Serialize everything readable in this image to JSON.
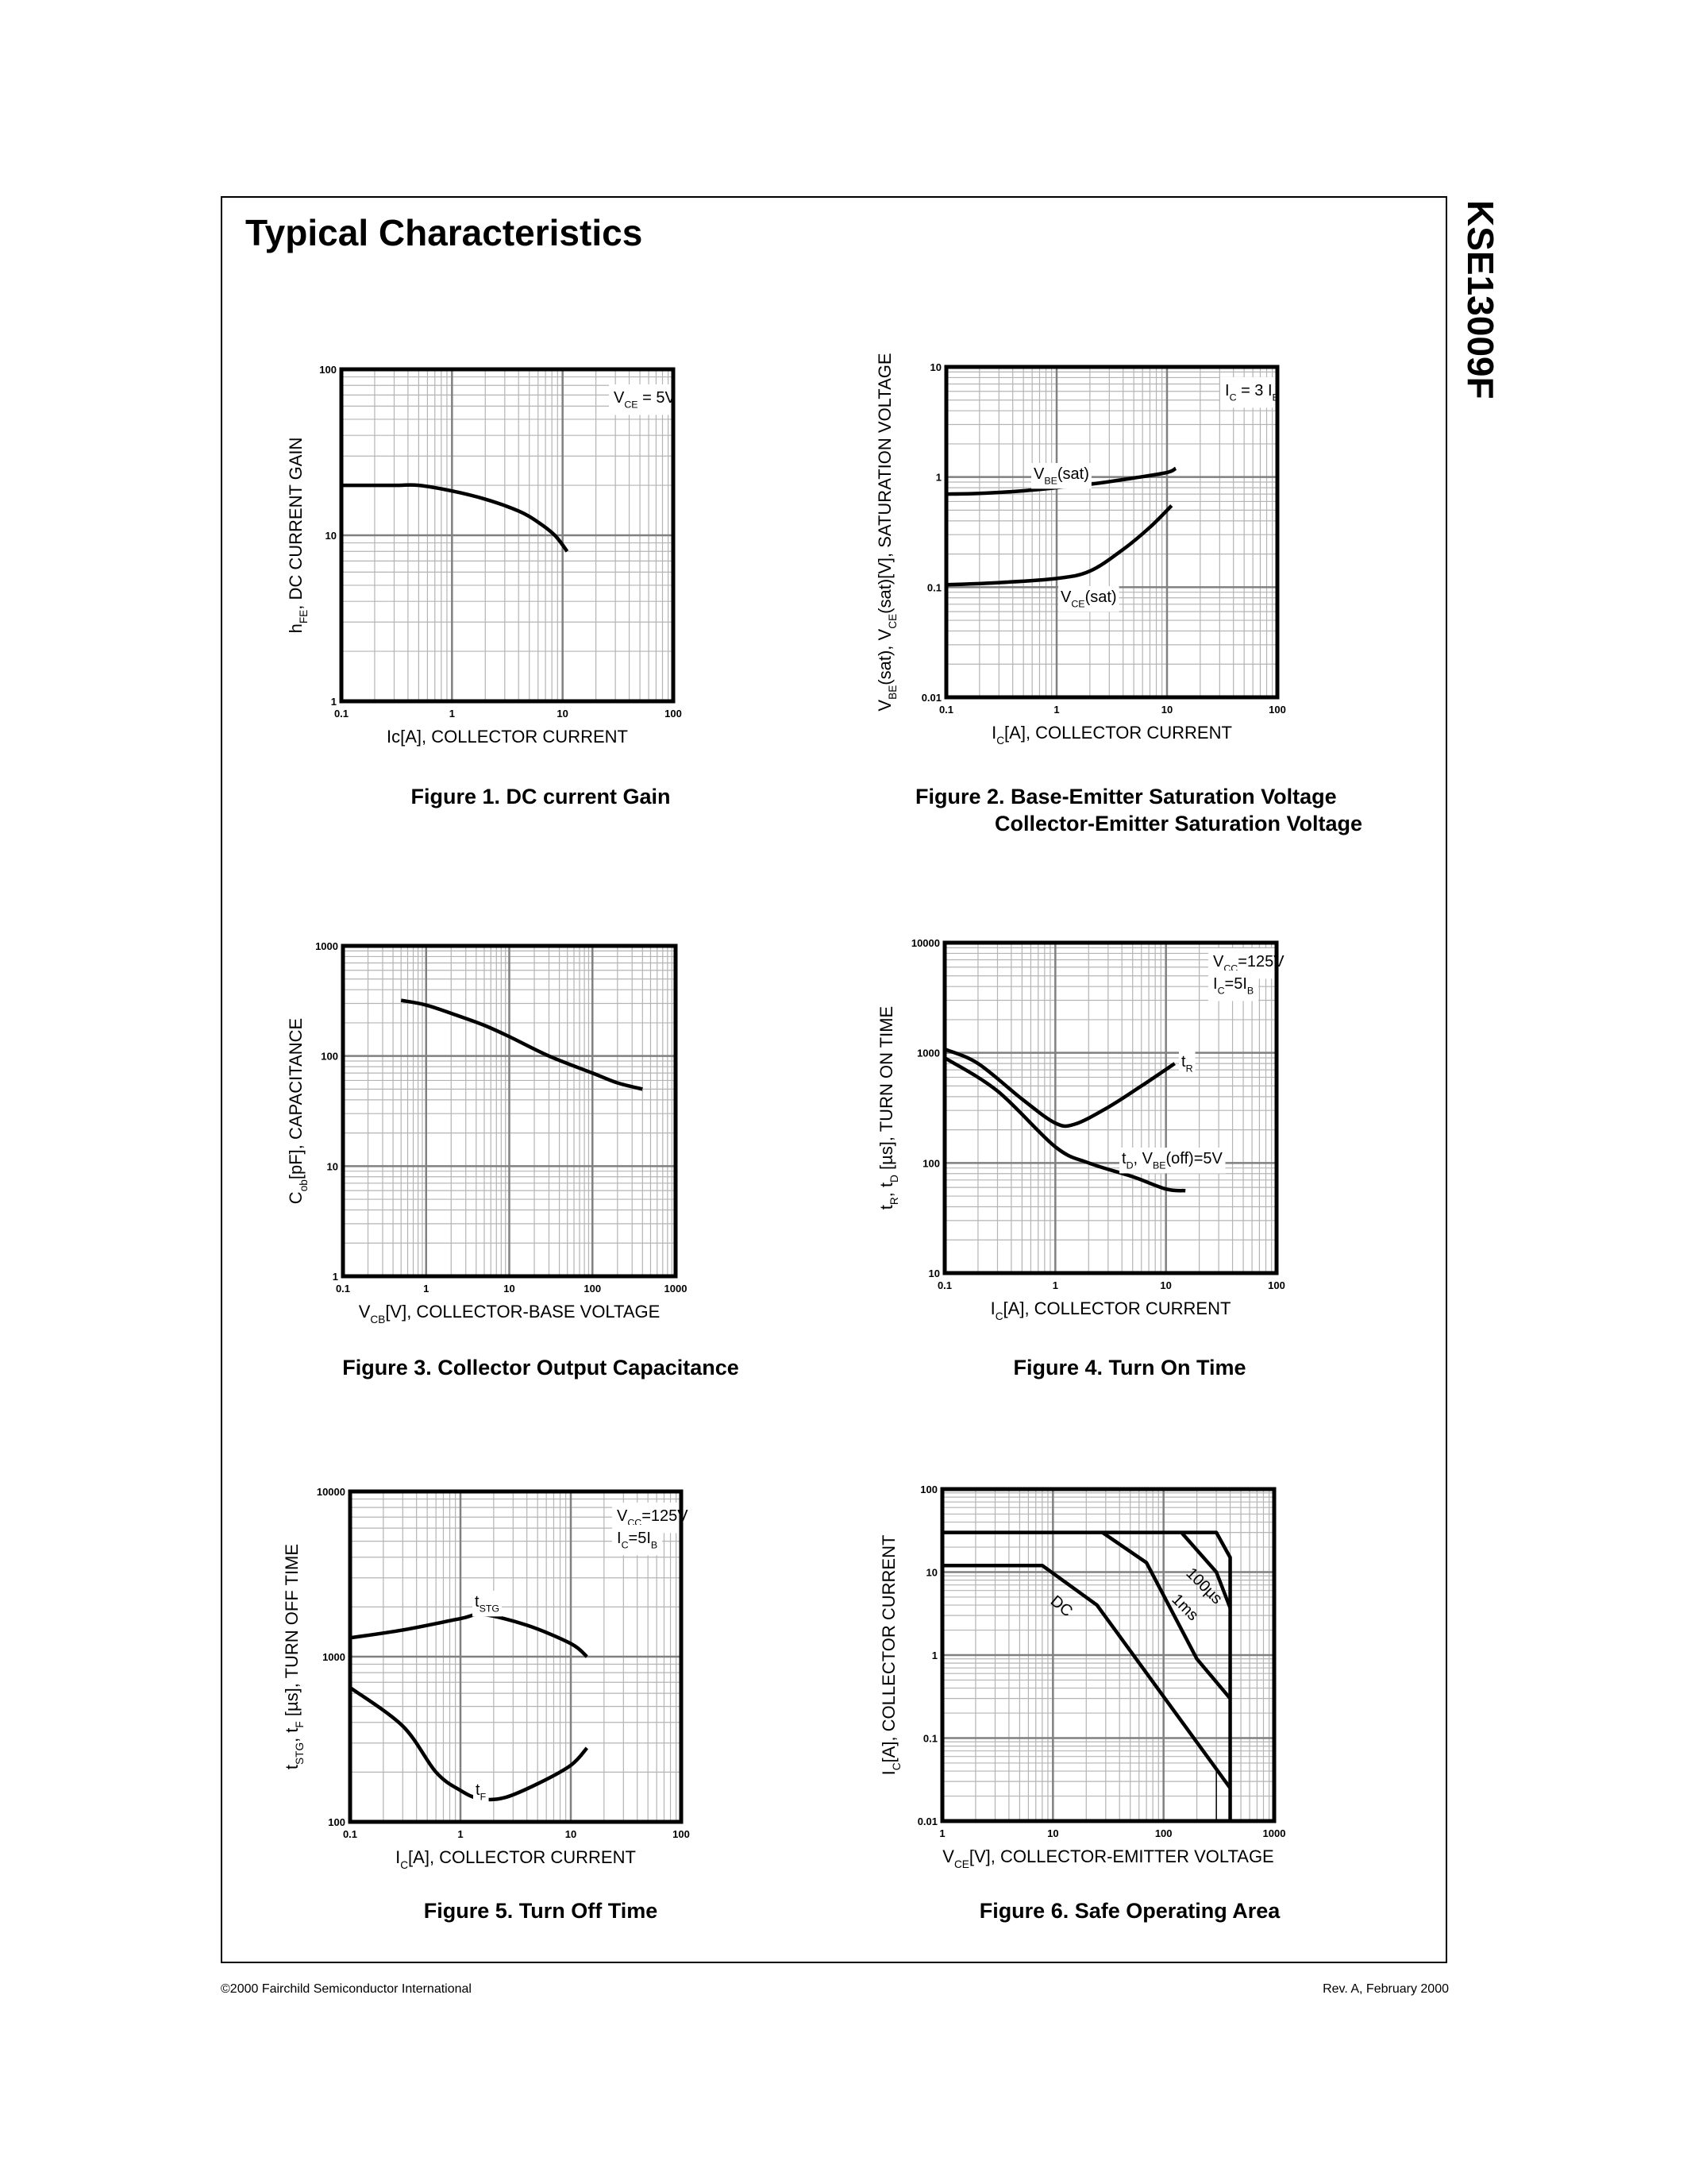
{
  "page": {
    "title": "Typical Characteristics",
    "part_number": "KSE13009F",
    "footer_left": "©2000 Fairchild Semiconductor International",
    "footer_right": "Rev. A, February 2000"
  },
  "captions": {
    "fig1": "Figure 1. DC current Gain",
    "fig2_line1": "Figure 2. Base-Emitter Saturation Voltage",
    "fig2_line2": "Collector-Emitter Saturation Voltage",
    "fig3": "Figure 3. Collector Output Capacitance",
    "fig4": "Figure 4. Turn On Time",
    "fig5": "Figure 5. Turn Off Time",
    "fig6": "Figure 6. Safe Operating Area"
  },
  "chart_data": [
    {
      "type": "line",
      "x_scale": "log",
      "y_scale": "log",
      "grid": true,
      "xlim": [
        0.1,
        100
      ],
      "ylim": [
        1,
        100
      ],
      "xticks": [
        "0.1",
        "1",
        "10",
        "100"
      ],
      "yticks": [
        "1",
        "10",
        "100"
      ],
      "xlabel": [
        {
          "t": "Ic[A], COLLECTOR CURRENT"
        }
      ],
      "ylabel": [
        {
          "t": "h"
        },
        {
          "s": "FE"
        },
        {
          "t": ", DC CURRENT GAIN"
        }
      ],
      "annotations": [
        [
          {
            "t": "V"
          },
          {
            "s": "CE"
          },
          {
            "t": " = 5V"
          }
        ]
      ],
      "series": [
        {
          "x": [
            0.1,
            0.3,
            0.5,
            1,
            2,
            4,
            6,
            8.5,
            11
          ],
          "y": [
            20,
            20,
            20,
            18.5,
            16.5,
            14,
            12,
            10,
            8
          ]
        }
      ]
    },
    {
      "type": "line",
      "x_scale": "log",
      "y_scale": "log",
      "grid": true,
      "xlim": [
        0.1,
        100
      ],
      "ylim": [
        0.01,
        10
      ],
      "xticks": [
        "0.1",
        "1",
        "10",
        "100"
      ],
      "yticks": [
        "0.01",
        "0.1",
        "1",
        "10"
      ],
      "xlabel": [
        {
          "t": "I"
        },
        {
          "s": "C"
        },
        {
          "t": "[A], COLLECTOR CURRENT"
        }
      ],
      "ylabel": [
        {
          "t": "V"
        },
        {
          "s": "BE"
        },
        {
          "t": "(sat), V"
        },
        {
          "s": "CE"
        },
        {
          "t": "(sat)[V], SATURATION VOLTAGE"
        }
      ],
      "annotations": [
        [
          {
            "t": "I"
          },
          {
            "s": "C"
          },
          {
            "t": " = 3 I"
          },
          {
            "s": "B"
          }
        ]
      ],
      "series": [
        {
          "label": [
            {
              "t": "V"
            },
            {
              "s": "BE"
            },
            {
              "t": "(sat)"
            }
          ],
          "x": [
            0.1,
            0.2,
            0.5,
            1,
            2,
            5,
            10,
            12
          ],
          "y": [
            0.7,
            0.71,
            0.75,
            0.8,
            0.86,
            0.98,
            1.1,
            1.2
          ]
        },
        {
          "label": [
            {
              "t": "V"
            },
            {
              "s": "CE"
            },
            {
              "t": "(sat)"
            }
          ],
          "x": [
            0.1,
            0.3,
            1,
            2,
            4,
            7,
            11
          ],
          "y": [
            0.105,
            0.11,
            0.12,
            0.14,
            0.22,
            0.35,
            0.55
          ]
        }
      ]
    },
    {
      "type": "line",
      "x_scale": "log",
      "y_scale": "log",
      "grid": true,
      "xlim": [
        0.1,
        1000
      ],
      "ylim": [
        1,
        1000
      ],
      "xticks": [
        "0.1",
        "1",
        "10",
        "100",
        "1000"
      ],
      "yticks": [
        "1",
        "10",
        "100",
        "1000"
      ],
      "xlabel": [
        {
          "t": "V"
        },
        {
          "s": "CB"
        },
        {
          "t": "[V], COLLECTOR-BASE VOLTAGE"
        }
      ],
      "ylabel": [
        {
          "t": "C"
        },
        {
          "s": "ob"
        },
        {
          "t": "[pF], CAPACITANCE"
        }
      ],
      "annotations": [],
      "series": [
        {
          "x": [
            0.5,
            1,
            2.5,
            5,
            10,
            30,
            100,
            200,
            400
          ],
          "y": [
            320,
            290,
            230,
            190,
            150,
            100,
            70,
            57,
            50
          ]
        }
      ]
    },
    {
      "type": "line",
      "x_scale": "log",
      "y_scale": "log",
      "grid": true,
      "xlim": [
        0.1,
        100
      ],
      "ylim": [
        10,
        10000
      ],
      "xticks": [
        "0.1",
        "1",
        "10",
        "100"
      ],
      "yticks": [
        "10",
        "100",
        "1000",
        "10000"
      ],
      "xlabel": [
        {
          "t": "I"
        },
        {
          "s": "C"
        },
        {
          "t": "[A], COLLECTOR CURRENT"
        }
      ],
      "ylabel": [
        {
          "t": "t"
        },
        {
          "s": "R"
        },
        {
          "t": ", t"
        },
        {
          "s": "D"
        },
        {
          "t": " [µs], TURN ON TIME"
        }
      ],
      "annotations": [
        [
          {
            "t": "V"
          },
          {
            "s": "CC"
          },
          {
            "t": "=125V"
          }
        ],
        [
          {
            "t": "I"
          },
          {
            "s": "C"
          },
          {
            "t": "=5I"
          },
          {
            "s": "B"
          }
        ]
      ],
      "series": [
        {
          "label": [
            {
              "t": "t"
            },
            {
              "s": "R"
            }
          ],
          "x": [
            0.1,
            0.2,
            0.5,
            1,
            1.5,
            3,
            6,
            12
          ],
          "y": [
            1080,
            800,
            380,
            230,
            225,
            320,
            500,
            800
          ]
        },
        {
          "label": [
            {
              "t": "t"
            },
            {
              "s": "D"
            },
            {
              "t": ", V"
            },
            {
              "s": "BE"
            },
            {
              "t": "(off)=5V"
            }
          ],
          "x": [
            0.1,
            0.3,
            1,
            2,
            5,
            10,
            15
          ],
          "y": [
            900,
            450,
            140,
            100,
            75,
            58,
            56
          ]
        }
      ]
    },
    {
      "type": "line",
      "x_scale": "log",
      "y_scale": "log",
      "grid": true,
      "xlim": [
        0.1,
        100
      ],
      "ylim": [
        100,
        10000
      ],
      "xticks": [
        "0.1",
        "1",
        "10",
        "100"
      ],
      "yticks": [
        "100",
        "1000",
        "10000"
      ],
      "xlabel": [
        {
          "t": "I"
        },
        {
          "s": "C"
        },
        {
          "t": "[A], COLLECTOR CURRENT"
        }
      ],
      "ylabel": [
        {
          "t": "t"
        },
        {
          "s": "STG"
        },
        {
          "t": ", t"
        },
        {
          "s": "F"
        },
        {
          "t": " [µs], TURN OFF TIME"
        }
      ],
      "annotations": [
        [
          {
            "t": "V"
          },
          {
            "s": "CC"
          },
          {
            "t": "=125V"
          }
        ],
        [
          {
            "t": "I"
          },
          {
            "s": "C"
          },
          {
            "t": "=5I"
          },
          {
            "s": "B"
          }
        ]
      ],
      "series": [
        {
          "label": [
            {
              "t": "t"
            },
            {
              "s": "STG"
            }
          ],
          "x": [
            0.1,
            0.3,
            1,
            1.6,
            4,
            10,
            14
          ],
          "y": [
            1300,
            1450,
            1700,
            1800,
            1550,
            1200,
            1000
          ]
        },
        {
          "label": [
            {
              "t": "t"
            },
            {
              "s": "F"
            }
          ],
          "x": [
            0.1,
            0.3,
            0.6,
            1,
            1.5,
            2.5,
            5,
            10,
            14
          ],
          "y": [
            650,
            380,
            200,
            155,
            138,
            140,
            170,
            220,
            280
          ]
        }
      ]
    },
    {
      "type": "line",
      "x_scale": "log",
      "y_scale": "log",
      "grid": true,
      "xlim": [
        1,
        1000
      ],
      "ylim": [
        0.01,
        100
      ],
      "xticks": [
        "1",
        "10",
        "100",
        "1000"
      ],
      "yticks": [
        "0.01",
        "0.1",
        "1",
        "10",
        "100"
      ],
      "xlabel": [
        {
          "t": "V"
        },
        {
          "s": "CE"
        },
        {
          "t": "[V], COLLECTOR-EMITTER VOLTAGE"
        }
      ],
      "ylabel": [
        {
          "t": "I"
        },
        {
          "s": "C"
        },
        {
          "t": "[A], COLLECTOR CURRENT"
        }
      ],
      "annotations": [],
      "series": [
        {
          "label": [
            {
              "t": "DC"
            }
          ],
          "x": [
            1,
            8,
            25,
            400
          ],
          "y": [
            12,
            12,
            4,
            0.025
          ]
        },
        {
          "label": [
            {
              "t": "1ms"
            }
          ],
          "x": [
            28,
            70,
            200,
            400
          ],
          "y": [
            30,
            13,
            0.9,
            0.3
          ]
        },
        {
          "label": [
            {
              "t": "100µs"
            }
          ],
          "x": [
            145,
            300,
            400
          ],
          "y": [
            30,
            10,
            3.7
          ]
        },
        {
          "x": [
            1,
            300,
            400,
            400
          ],
          "y": [
            30,
            30,
            15,
            0.01
          ]
        },
        {
          "x": [
            300,
            300
          ],
          "y": [
            0.01,
            0.04
          ]
        }
      ]
    }
  ]
}
